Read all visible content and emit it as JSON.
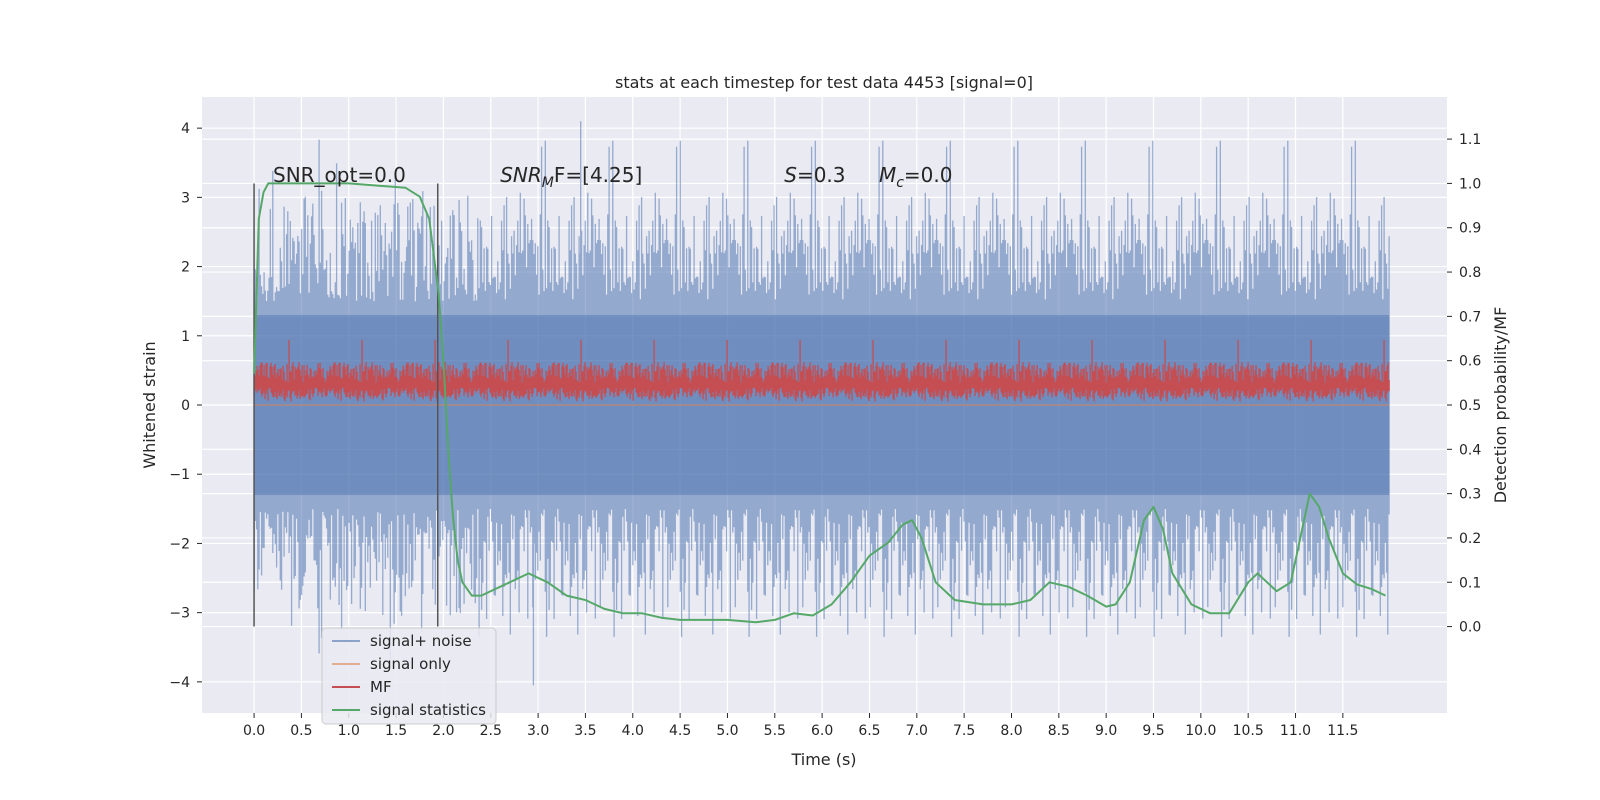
{
  "chart_data": {
    "type": "line",
    "title": "stats at each timestep for test data 4453 [signal=0]",
    "xlabel": "Time (s)",
    "ylabel_left": "Whitened strain",
    "ylabel_right": "Detection probability/MF",
    "xlim": [
      -0.55,
      12.6
    ],
    "ylim_left": [
      -4.45,
      4.45
    ],
    "ylim_right": [
      -0.195,
      1.195
    ],
    "x_ticks": [
      0.0,
      0.5,
      1.0,
      1.5,
      2.0,
      2.5,
      3.0,
      3.5,
      4.0,
      4.5,
      5.0,
      5.5,
      6.0,
      6.5,
      7.0,
      7.5,
      8.0,
      8.5,
      9.0,
      9.5,
      10.0,
      10.5,
      11.0,
      11.5
    ],
    "x_tick_labels": [
      "0.0",
      "0.5",
      "1.0",
      "1.5",
      "2.0",
      "2.5",
      "3.0",
      "3.5",
      "4.0",
      "4.5",
      "5.0",
      "5.5",
      "6.0",
      "6.5",
      "7.0",
      "7.5",
      "8.0",
      "8.5",
      "9.0",
      "9.5",
      "10.0",
      "10.5",
      "11.0",
      "11.5"
    ],
    "y_left_ticks": [
      -4,
      -3,
      -2,
      -1,
      0,
      1,
      2,
      3,
      4
    ],
    "y_left_tick_labels": [
      "−4",
      "−3",
      "−2",
      "−1",
      "0",
      "1",
      "2",
      "3",
      "4"
    ],
    "y_right_ticks": [
      0.0,
      0.1,
      0.2,
      0.3,
      0.4,
      0.5,
      0.6,
      0.7,
      0.8,
      0.9,
      1.0,
      1.1
    ],
    "y_right_tick_labels": [
      "0.0",
      "0.1",
      "0.2",
      "0.3",
      "0.4",
      "0.5",
      "0.6",
      "0.7",
      "0.8",
      "0.9",
      "1.0",
      "1.1"
    ],
    "grid": true,
    "legend_position": "lower-left",
    "series": [
      {
        "name": "signal+ noise",
        "axis": "left",
        "color": "#4c72b0",
        "style": "dense noise, roughly uniform in about [-2.5, 2.5] with spikes to about ±4",
        "x_range": [
          0.0,
          11.99
        ],
        "envelope_peaks": [
          {
            "x": 3.45,
            "y": 4.1
          },
          {
            "x": 2.95,
            "y": -4.05
          }
        ]
      },
      {
        "name": "signal only",
        "axis": "left",
        "color": "#dd8452",
        "x": [
          0.0,
          11.99
        ],
        "y": [
          0.0,
          0.0
        ]
      },
      {
        "name": "MF",
        "axis": "left",
        "color": "#c44e52",
        "style": "dense band roughly between 0.05 and 0.6 with spikes near 0.9",
        "x_range": [
          0.0,
          11.99
        ]
      },
      {
        "name": "signal statistics",
        "axis": "right",
        "color": "#55a868",
        "x": [
          0.0,
          0.05,
          0.1,
          0.15,
          0.25,
          0.5,
          1.0,
          1.3,
          1.6,
          1.75,
          1.85,
          1.95,
          2.0,
          2.05,
          2.1,
          2.15,
          2.2,
          2.3,
          2.4,
          2.5,
          2.7,
          2.9,
          3.1,
          3.3,
          3.5,
          3.7,
          3.9,
          4.1,
          4.3,
          4.5,
          4.7,
          5.0,
          5.3,
          5.5,
          5.7,
          5.9,
          6.1,
          6.3,
          6.5,
          6.7,
          6.85,
          6.95,
          7.05,
          7.2,
          7.4,
          7.7,
          8.0,
          8.2,
          8.4,
          8.6,
          8.8,
          9.0,
          9.1,
          9.25,
          9.4,
          9.5,
          9.6,
          9.7,
          9.9,
          10.1,
          10.3,
          10.5,
          10.6,
          10.7,
          10.8,
          10.95,
          11.05,
          11.15,
          11.25,
          11.35,
          11.5,
          11.65,
          11.8,
          11.95
        ],
        "y": [
          0.57,
          0.92,
          0.98,
          1.0,
          1.0,
          1.0,
          1.0,
          0.995,
          0.99,
          0.97,
          0.92,
          0.75,
          0.6,
          0.4,
          0.25,
          0.15,
          0.1,
          0.07,
          0.07,
          0.08,
          0.1,
          0.12,
          0.1,
          0.07,
          0.06,
          0.04,
          0.03,
          0.03,
          0.02,
          0.015,
          0.015,
          0.015,
          0.01,
          0.015,
          0.03,
          0.025,
          0.05,
          0.1,
          0.16,
          0.19,
          0.23,
          0.24,
          0.2,
          0.1,
          0.06,
          0.05,
          0.05,
          0.06,
          0.1,
          0.09,
          0.07,
          0.045,
          0.05,
          0.1,
          0.24,
          0.27,
          0.22,
          0.12,
          0.05,
          0.03,
          0.03,
          0.1,
          0.12,
          0.1,
          0.08,
          0.1,
          0.2,
          0.3,
          0.27,
          0.2,
          0.12,
          0.095,
          0.085,
          0.07
        ]
      }
    ],
    "vertical_lines": [
      {
        "x": 0.0,
        "ymin": -3.2,
        "ymax": 3.2,
        "color": "#555555"
      },
      {
        "x": 1.94,
        "ymin": -3.2,
        "ymax": 3.2,
        "color": "#555555"
      }
    ],
    "annotations": [
      {
        "id": "snr_opt",
        "text": "SNR_opt=0.0",
        "x": 0.2,
        "y": 3.22
      },
      {
        "id": "snr_mf",
        "base": "SNR",
        "sub": "M",
        "rest": "F=[4.25]",
        "x": 2.6,
        "y": 3.22
      },
      {
        "id": "s_stat",
        "italic": "S",
        "rest": "=0.3",
        "x": 5.6,
        "y": 3.22
      },
      {
        "id": "mc_stat",
        "base": "M",
        "sub": "c",
        "rest": "=0.0",
        "x": 6.6,
        "y": 3.22
      }
    ]
  }
}
